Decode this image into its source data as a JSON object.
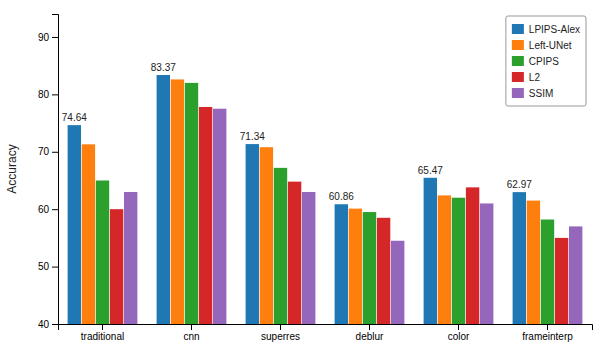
{
  "chart_data": {
    "type": "bar",
    "categories": [
      "traditional",
      "cnn",
      "superres",
      "deblur",
      "color",
      "frameinterp"
    ],
    "series": [
      {
        "name": "LPIPS-Alex",
        "color": "#1f77b4",
        "values": [
          74.64,
          83.37,
          71.34,
          60.86,
          65.47,
          62.97
        ],
        "data_labels": true
      },
      {
        "name": "Left-UNet",
        "color": "#ff7f0e",
        "values": [
          71.3,
          82.6,
          70.8,
          60.1,
          62.4,
          61.5
        ]
      },
      {
        "name": "CPIPS",
        "color": "#2ca02c",
        "values": [
          65.0,
          82.0,
          67.2,
          59.5,
          62.0,
          58.2
        ]
      },
      {
        "name": "L2",
        "color": "#d62728",
        "values": [
          60.0,
          77.8,
          64.8,
          58.5,
          63.8,
          55.0
        ]
      },
      {
        "name": "SSIM",
        "color": "#9467bd",
        "values": [
          63.0,
          77.5,
          63.0,
          54.5,
          61.0,
          57.0
        ]
      }
    ],
    "ylabel": "Accuracy",
    "ylim": [
      40,
      94
    ],
    "yticks": [
      40,
      50,
      60,
      70,
      80,
      90
    ],
    "grid": false,
    "legend": "upper right"
  }
}
